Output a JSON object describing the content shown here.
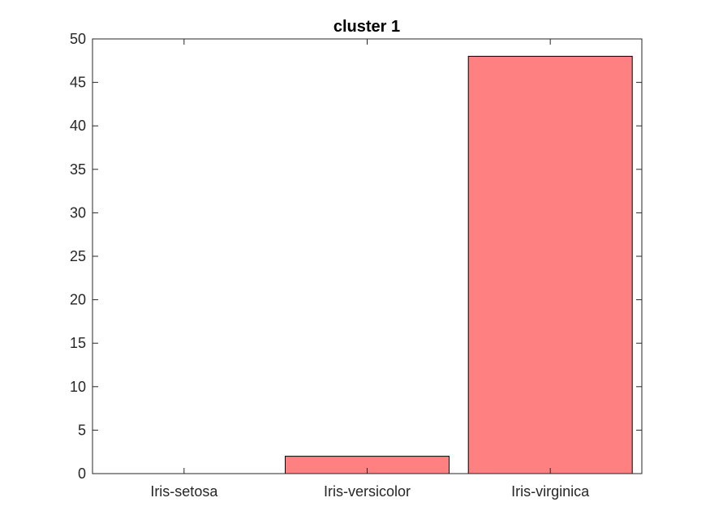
{
  "chart_data": {
    "type": "bar",
    "title": "cluster 1",
    "xlabel": "",
    "ylabel": "",
    "categories": [
      "Iris-setosa",
      "Iris-versicolor",
      "Iris-virginica"
    ],
    "values": [
      0,
      2,
      48
    ],
    "ylim": [
      0,
      50
    ],
    "yticks": [
      0,
      5,
      10,
      15,
      20,
      25,
      30,
      35,
      40,
      45,
      50
    ],
    "grid": false,
    "legend": "none",
    "colors": {
      "bar_fill": "#ff8080",
      "bar_edge": "#000000",
      "axis": "#262626",
      "background": "#ffffff"
    }
  }
}
